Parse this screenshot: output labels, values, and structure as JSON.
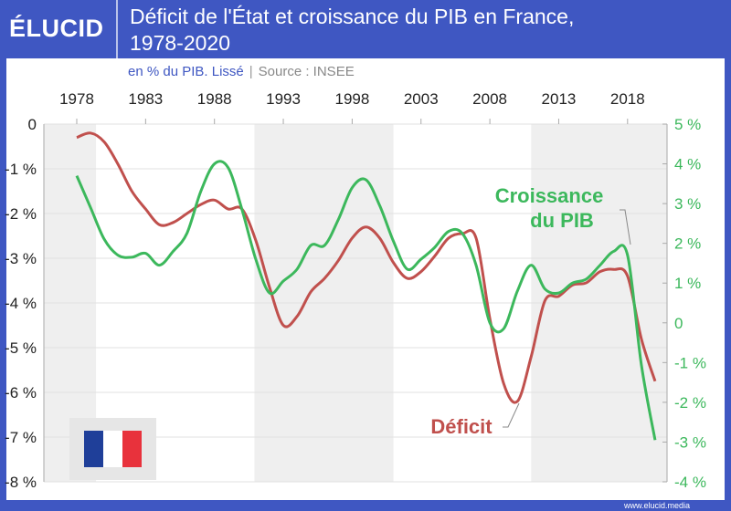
{
  "header": {
    "logo": "ÉLUCID",
    "title_line1": "Déficit de l'État et croissance du PIB en France,",
    "title_line2": "1978-2020"
  },
  "subtitle": {
    "unit": "en % du PIB. Lissé",
    "separator": "|",
    "source": "Source : INSEE"
  },
  "footer": {
    "url": "www.elucid.media"
  },
  "colors": {
    "frame": "#3f57c2",
    "deficit": "#c0504d",
    "growth": "#3cb85c",
    "band": "#efefef"
  },
  "flag": {
    "icon": "france-flag-icon",
    "colors": [
      "#1f3f99",
      "#ffffff",
      "#e8323c"
    ]
  },
  "chart_data": {
    "type": "line",
    "x": [
      1978,
      1979,
      1980,
      1981,
      1982,
      1983,
      1984,
      1985,
      1986,
      1987,
      1988,
      1989,
      1990,
      1991,
      1992,
      1993,
      1994,
      1995,
      1996,
      1997,
      1998,
      1999,
      2000,
      2001,
      2002,
      2003,
      2004,
      2005,
      2006,
      2007,
      2008,
      2009,
      2010,
      2011,
      2012,
      2013,
      2014,
      2015,
      2016,
      2017,
      2018,
      2019,
      2020
    ],
    "xticks": [
      "1978",
      "1983",
      "1988",
      "1993",
      "1998",
      "2003",
      "2008",
      "2013",
      "2018"
    ],
    "xlim": [
      1975.6,
      2021
    ],
    "yleft": {
      "ylim": [
        -8,
        0
      ],
      "ticks": [
        "0",
        "-1 %",
        "-2 %",
        "-3 %",
        "-4 %",
        "-5 %",
        "-6 %",
        "-7 %",
        "-8 %"
      ]
    },
    "yright": {
      "ylim": [
        -4,
        5
      ],
      "ticks": [
        "5 %",
        "4 %",
        "3 %",
        "2 %",
        "1 %",
        "0",
        "-1 %",
        "-2 %",
        "-3 %",
        "-4 %"
      ]
    },
    "grid": true,
    "shaded_bands": [
      [
        1975.6,
        1979.4
      ],
      [
        1990.9,
        2001
      ],
      [
        2011,
        2021
      ]
    ],
    "series": [
      {
        "name": "Déficit",
        "axis": "left",
        "color": "#c0504d",
        "values": [
          -0.3,
          -0.2,
          -0.4,
          -0.9,
          -1.5,
          -1.9,
          -2.25,
          -2.2,
          -2.0,
          -1.8,
          -1.7,
          -1.9,
          -1.9,
          -2.6,
          -3.65,
          -4.5,
          -4.3,
          -3.75,
          -3.45,
          -3.05,
          -2.55,
          -2.3,
          -2.55,
          -3.1,
          -3.45,
          -3.3,
          -2.95,
          -2.55,
          -2.45,
          -2.55,
          -4.35,
          -5.8,
          -6.2,
          -5.2,
          -3.95,
          -3.85,
          -3.6,
          -3.55,
          -3.3,
          -3.25,
          -3.4,
          -4.8,
          -5.75
        ]
      },
      {
        "name": "Croissance du PIB",
        "axis": "right",
        "color": "#3cb85c",
        "values": [
          3.7,
          2.9,
          2.1,
          1.7,
          1.65,
          1.75,
          1.45,
          1.8,
          2.25,
          3.3,
          4.0,
          3.9,
          2.85,
          1.6,
          0.75,
          1.05,
          1.35,
          1.95,
          1.95,
          2.6,
          3.4,
          3.6,
          2.95,
          2.05,
          1.35,
          1.6,
          1.9,
          2.3,
          2.25,
          1.45,
          0.0,
          -0.15,
          0.8,
          1.45,
          0.85,
          0.75,
          1.0,
          1.1,
          1.45,
          1.8,
          1.7,
          -1.05,
          -2.95
        ]
      }
    ],
    "annotations": [
      {
        "text_line1": "Croissance",
        "text_line2": "du PIB",
        "series": "Croissance du PIB"
      },
      {
        "text": "Déficit",
        "series": "Déficit"
      }
    ]
  }
}
